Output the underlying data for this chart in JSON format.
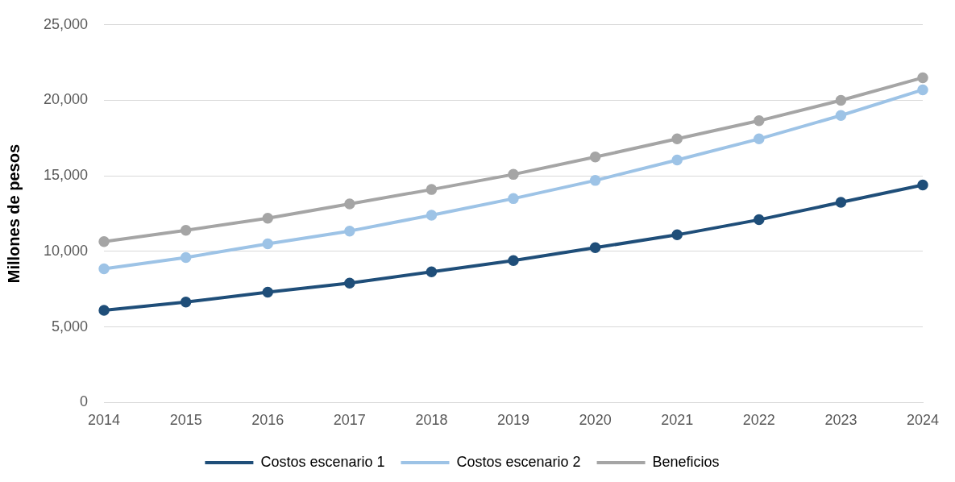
{
  "chart_data": {
    "type": "line",
    "ylabel": "Millones de pesos",
    "categories": [
      "2014",
      "2015",
      "2016",
      "2017",
      "2018",
      "2019",
      "2020",
      "2021",
      "2022",
      "2023",
      "2024"
    ],
    "series": [
      {
        "name": "Costos escenario 1",
        "color": "#1f4e79",
        "values": [
          6100,
          6650,
          7300,
          7900,
          8650,
          9400,
          10250,
          11100,
          12100,
          13250,
          14400
        ]
      },
      {
        "name": "Costos escenario 2",
        "color": "#9dc3e6",
        "values": [
          8850,
          9600,
          10500,
          11350,
          12400,
          13500,
          14700,
          16050,
          17450,
          19000,
          20700
        ]
      },
      {
        "name": "Beneficios",
        "color": "#a5a5a5",
        "values": [
          10650,
          11400,
          12200,
          13150,
          14100,
          15100,
          16250,
          17450,
          18650,
          20000,
          21500
        ]
      }
    ],
    "ylim": [
      0,
      25000
    ],
    "yticks": [
      {
        "value": 0,
        "label": "0"
      },
      {
        "value": 5000,
        "label": "5,000"
      },
      {
        "value": 10000,
        "label": "10,000"
      },
      {
        "value": 15000,
        "label": "15,000"
      },
      {
        "value": 20000,
        "label": "20,000"
      },
      {
        "value": 25000,
        "label": "25,000"
      }
    ],
    "grid": "y",
    "legend": "bottom",
    "marker": "circle",
    "line_style": "solid"
  }
}
